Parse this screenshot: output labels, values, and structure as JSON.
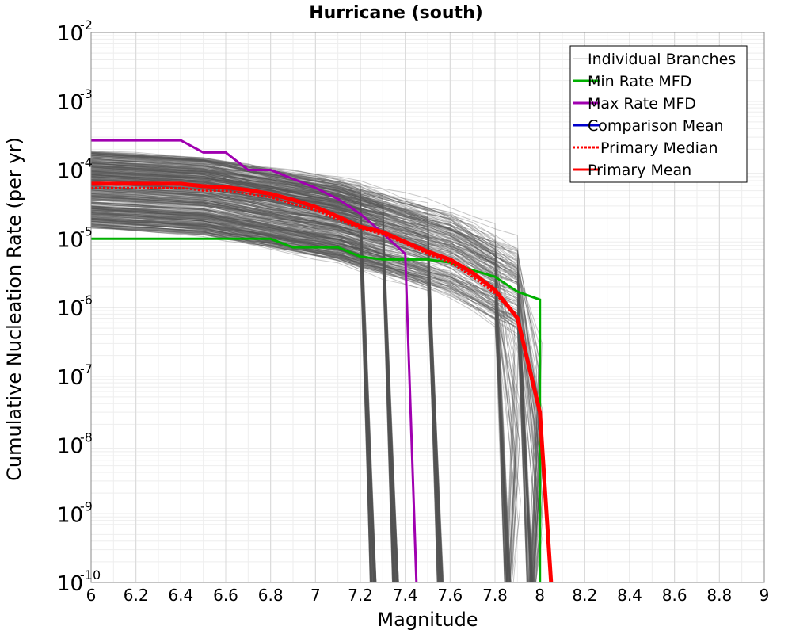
{
  "chart_data": {
    "type": "line",
    "title": "Hurricane (south)",
    "xlabel": "Magnitude",
    "ylabel": "Cumulative Nucleation Rate (per yr)",
    "xlim": [
      6,
      9
    ],
    "ylim": [
      1e-10,
      0.01
    ],
    "y_scale": "log",
    "grid": true,
    "legend_position": "top-right",
    "x_ticks": [
      "6",
      "6.2",
      "6.4",
      "6.6",
      "6.8",
      "7",
      "7.2",
      "7.4",
      "7.6",
      "7.8",
      "8",
      "8.2",
      "8.4",
      "8.6",
      "8.8",
      "9"
    ],
    "y_ticks": [
      {
        "base": "10",
        "exp": "-10",
        "value": 1e-10
      },
      {
        "base": "10",
        "exp": "-9",
        "value": 1e-09
      },
      {
        "base": "10",
        "exp": "-8",
        "value": 1e-08
      },
      {
        "base": "10",
        "exp": "-7",
        "value": 1e-07
      },
      {
        "base": "10",
        "exp": "-6",
        "value": 1e-06
      },
      {
        "base": "10",
        "exp": "-5",
        "value": 1e-05
      },
      {
        "base": "10",
        "exp": "-4",
        "value": 0.0001
      },
      {
        "base": "10",
        "exp": "-3",
        "value": 0.001
      },
      {
        "base": "10",
        "exp": "-2",
        "value": 0.01
      }
    ],
    "series": [
      {
        "name": "Individual Branches",
        "color": "#555555",
        "style": "thin",
        "count_approx": 500,
        "rate_range_at_m6": [
          1.5e-05,
          0.0002
        ],
        "cutoff_magnitudes": [
          7.25,
          7.35,
          7.55,
          7.85,
          7.95
        ]
      },
      {
        "name": "Min Rate MFD",
        "color": "#00b000",
        "x": [
          6.0,
          6.8,
          6.9,
          7.1,
          7.2,
          7.3,
          7.5,
          7.6,
          7.7,
          7.8,
          7.9,
          8.0,
          8.0
        ],
        "y": [
          1e-05,
          1e-05,
          7.5e-06,
          7.5e-06,
          5.5e-06,
          5e-06,
          5e-06,
          4.5e-06,
          3.5e-06,
          2.8e-06,
          1.7e-06,
          1.3e-06,
          1e-10
        ]
      },
      {
        "name": "Max Rate MFD",
        "color": "#a000b0",
        "x": [
          6.0,
          6.4,
          6.5,
          6.6,
          6.7,
          6.8,
          7.0,
          7.1,
          7.2,
          7.3,
          7.4,
          7.45
        ],
        "y": [
          0.00027,
          0.00027,
          0.00018,
          0.00018,
          0.0001,
          0.0001,
          5.5e-05,
          3.8e-05,
          2.3e-05,
          1.2e-05,
          6e-06,
          1e-10
        ]
      },
      {
        "name": "Comparison Mean",
        "color": "#0000cc",
        "x": [],
        "y": []
      },
      {
        "name": "Primary Median",
        "color": "#ff0000",
        "dashed": true,
        "x": [
          6.0,
          6.4,
          6.5,
          6.6,
          6.7,
          6.8,
          6.9,
          7.0,
          7.1,
          7.2,
          7.3,
          7.4,
          7.5,
          7.6,
          7.7,
          7.8,
          7.9,
          8.0,
          8.05
        ],
        "y": [
          5.5e-05,
          5.5e-05,
          5e-05,
          5e-05,
          4.5e-05,
          4e-05,
          3.2e-05,
          2.6e-05,
          1.9e-05,
          1.4e-05,
          1.15e-05,
          8.5e-06,
          6e-06,
          4.5e-06,
          2.8e-06,
          1.6e-06,
          7e-07,
          3e-08,
          1e-10
        ]
      },
      {
        "name": "Primary Mean",
        "color": "#ff0000",
        "x": [
          6.0,
          6.4,
          6.5,
          6.6,
          6.7,
          6.8,
          6.9,
          7.0,
          7.1,
          7.2,
          7.3,
          7.4,
          7.5,
          7.6,
          7.7,
          7.8,
          7.9,
          8.0,
          8.05
        ],
        "y": [
          6.3e-05,
          6.3e-05,
          5.8e-05,
          5.6e-05,
          5.1e-05,
          4.5e-05,
          3.7e-05,
          2.9e-05,
          2.1e-05,
          1.5e-05,
          1.25e-05,
          9e-06,
          6.5e-06,
          5e-06,
          3.2e-06,
          1.8e-06,
          7e-07,
          3e-08,
          1e-10
        ]
      }
    ]
  }
}
